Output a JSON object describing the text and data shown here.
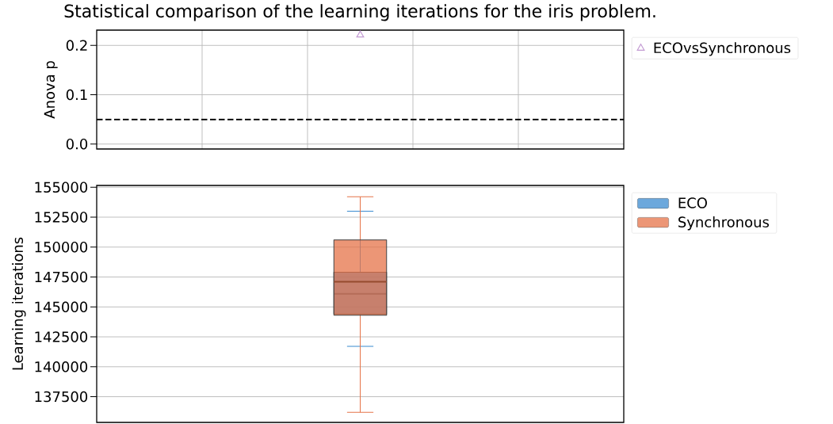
{
  "chart_data": [
    {
      "type": "scatter",
      "title": "Statistical comparison of the learning iterations for the iris problem.",
      "ylabel": "Anova p",
      "categories": [
        null
      ],
      "ylim": [
        -0.01,
        0.231
      ],
      "yticks": [
        {
          "value": 0,
          "label": "0.0"
        },
        0.1,
        0.2
      ],
      "series": [
        {
          "name": "ECOvsSynchronous",
          "color": "#c39bd3",
          "values": [
            0.221
          ]
        }
      ],
      "marker": "triangle",
      "ref_lines": [
        {
          "axis": "y",
          "value": 0.05,
          "color": "#000000",
          "line_style": "dashed"
        }
      ],
      "grid": true,
      "legend": "right"
    },
    {
      "type": "box",
      "ylabel": "Learning iterations",
      "categories": [
        null
      ],
      "series": [
        {
          "name": "ECO",
          "color": "#3b8bd0",
          "boxes": [
            {
              "low": 141700,
              "q1": 144400,
              "median": 146100,
              "q3": 147900,
              "high": 153000
            }
          ]
        },
        {
          "name": "Synchronous",
          "color": "#e57348",
          "boxes": [
            {
              "low": 136200,
              "q1": 144300,
              "median": 147100,
              "q3": 150600,
              "high": 154200
            }
          ]
        }
      ],
      "ylim": [
        135350,
        155150
      ],
      "yticks": [
        137500,
        140000,
        142500,
        145000,
        147500,
        150000,
        152500,
        155000
      ],
      "grid": "y",
      "legend": "right"
    }
  ]
}
